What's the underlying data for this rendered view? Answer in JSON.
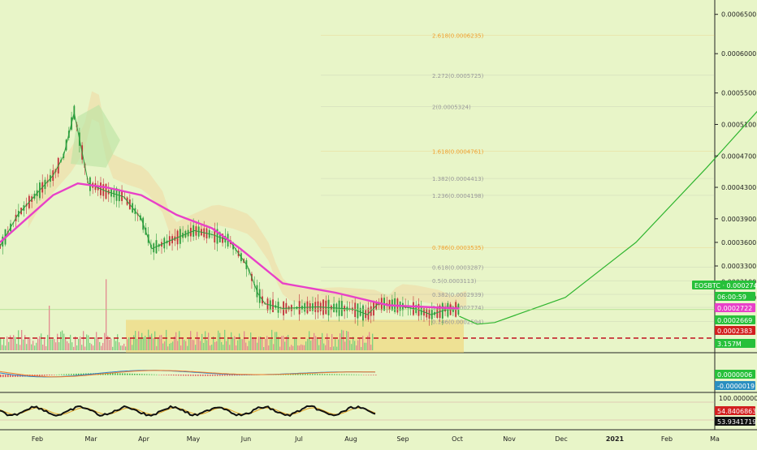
{
  "colors": {
    "background": "#e8f5c8",
    "up": "#2e9e3e",
    "down": "#c2313a",
    "ma": "#e840c8",
    "projection": "#2fb52f",
    "box": "#f3cf6a",
    "dashed": "#c1121f",
    "cloud": "#f0d7a2",
    "cloud_green": "#b9e3a2",
    "fib_gray": "#9a9a9a",
    "fib_orange": "#f0a030"
  },
  "chart_data": [
    {
      "type": "line",
      "symbol": "EOSBTC",
      "x_labels": [
        "Feb",
        "Mar",
        "Apr",
        "May",
        "Jun",
        "Jul",
        "Aug",
        "Sep",
        "Oct",
        "Nov",
        "Dec",
        "2021",
        "Feb",
        "Ma"
      ],
      "y_ticks": [
        "0.0006500",
        "0.0006000",
        "0.0005500",
        "0.0005100",
        "0.0004700",
        "0.0004300",
        "0.0003900",
        "0.0003600",
        "0.0003300",
        "0.0003100",
        "0.0002900"
      ],
      "ylim": [
        0.00023,
        0.00066
      ],
      "price_series": [
        [
          0,
          0.000355
        ],
        [
          5,
          0.000395
        ],
        [
          10,
          0.00042
        ],
        [
          15,
          0.000445
        ],
        [
          18,
          0.00047
        ],
        [
          21,
          0.000525
        ],
        [
          25,
          0.000435
        ],
        [
          30,
          0.000425
        ],
        [
          35,
          0.000418
        ],
        [
          40,
          0.00039
        ],
        [
          43,
          0.000352
        ],
        [
          48,
          0.000362
        ],
        [
          55,
          0.000375
        ],
        [
          60,
          0.00037
        ],
        [
          65,
          0.000362
        ],
        [
          70,
          0.00033
        ],
        [
          73,
          0.000295
        ],
        [
          75,
          0.000282
        ],
        [
          80,
          0.000276
        ],
        [
          90,
          0.000278
        ],
        [
          100,
          0.000275
        ],
        [
          104,
          0.000268
        ],
        [
          107,
          0.000282
        ],
        [
          112,
          0.00028
        ],
        [
          118,
          0.000275
        ],
        [
          122,
          0.000268
        ],
        [
          126,
          0.000274
        ],
        [
          130,
          0.000275
        ]
      ],
      "ma_series": [
        [
          0,
          0.00036
        ],
        [
          15,
          0.00042
        ],
        [
          22,
          0.000435
        ],
        [
          30,
          0.00043
        ],
        [
          40,
          0.00042
        ],
        [
          50,
          0.000395
        ],
        [
          60,
          0.000378
        ],
        [
          68,
          0.000352
        ],
        [
          80,
          0.000308
        ],
        [
          95,
          0.000296
        ],
        [
          110,
          0.00028
        ],
        [
          120,
          0.000278
        ],
        [
          130,
          0.000276
        ]
      ],
      "projection_series": [
        [
          130,
          0.000266
        ],
        [
          135,
          0.000256
        ],
        [
          140,
          0.000258
        ],
        [
          160,
          0.00029
        ],
        [
          180,
          0.00036
        ],
        [
          200,
          0.000455
        ],
        [
          228,
          0.000595
        ]
      ],
      "fib_levels": [
        {
          "label": "2.618(0.0006235)",
          "value": 0.0006235,
          "color": "orange"
        },
        {
          "label": "2.272(0.0005725)",
          "value": 0.0005725,
          "color": "gray"
        },
        {
          "label": "2(0.0005324)",
          "value": 0.0005324,
          "color": "gray"
        },
        {
          "label": "1.618(0.0004761)",
          "value": 0.0004761,
          "color": "orange"
        },
        {
          "label": "1.382(0.0004413)",
          "value": 0.0004413,
          "color": "gray"
        },
        {
          "label": "1.236(0.0004198)",
          "value": 0.0004198,
          "color": "gray"
        },
        {
          "label": "0.786(0.0003535)",
          "value": 0.0003535,
          "color": "orange"
        },
        {
          "label": "0.618(0.0003287)",
          "value": 0.0003287,
          "color": "gray"
        },
        {
          "label": "0.5(0.0003113)",
          "value": 0.0003113,
          "color": "gray"
        },
        {
          "label": "0.382(0.0002939)",
          "value": 0.0002939,
          "color": "gray"
        },
        {
          "label": "0.236(0.0002774)",
          "value": 0.0002774,
          "color": "gray"
        },
        {
          "label": "0.146(0.0002594)",
          "value": 0.0002594,
          "color": "gray"
        }
      ],
      "support_line": 0.0002383,
      "box_range": [
        0.0002383,
        0.0002594
      ],
      "price_tags": [
        {
          "label": "EOSBTC",
          "value": "0.0002745",
          "price": 0.0002745,
          "bg": "#27c03a",
          "fg": "#ffffff"
        },
        {
          "label": "",
          "value": "06:00:59",
          "price": 0.000268,
          "bg": "#27c03a",
          "fg": "#ffffff"
        },
        {
          "label": "",
          "value": "0.0002722",
          "price": 0.0002722,
          "bg": "#e840c8",
          "fg": "#ffffff"
        },
        {
          "label": "",
          "value": "0.0002669",
          "price": 0.0002669,
          "bg": "#27c03a",
          "fg": "#ffffff"
        },
        {
          "label": "",
          "value": "0.0002383",
          "price": 0.0002383,
          "bg": "#d21f1f",
          "fg": "#ffffff"
        }
      ],
      "volume_tag": "3.157M",
      "x_label_positions": [
        0,
        15,
        30,
        45,
        60,
        75,
        90,
        105,
        120,
        135,
        150,
        165,
        180,
        195
      ]
    },
    {
      "type": "line",
      "indicator": "macd",
      "tags": [
        "0.0000006",
        "-0.0000019"
      ]
    },
    {
      "type": "line",
      "indicator": "rsi",
      "tags": [
        "100.0000000",
        "54.8406863",
        "53.9341719"
      ]
    }
  ]
}
